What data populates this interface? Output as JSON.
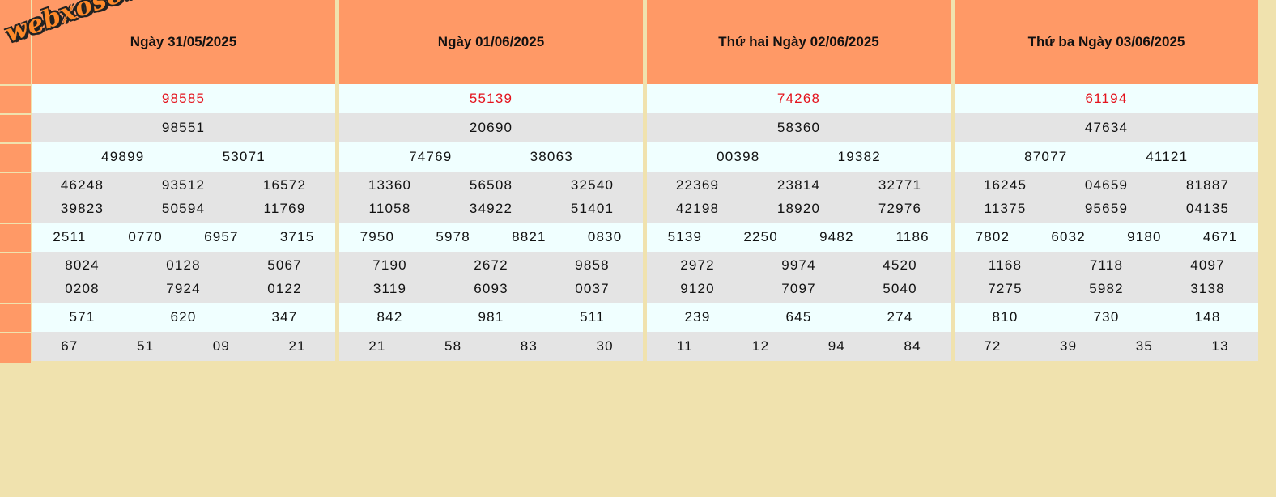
{
  "logo": "webxoso.net",
  "days": [
    {
      "title": "Ngày 31/05/2025",
      "g_db": [
        "98585"
      ],
      "g1": [
        "98551"
      ],
      "g2": [
        "49899",
        "53071"
      ],
      "g3a": [
        "46248",
        "93512",
        "16572"
      ],
      "g3b": [
        "39823",
        "50594",
        "11769"
      ],
      "g4": [
        "2511",
        "0770",
        "6957",
        "3715"
      ],
      "g5a": [
        "8024",
        "0128",
        "5067"
      ],
      "g5b": [
        "0208",
        "7924",
        "0122"
      ],
      "g6": [
        "571",
        "620",
        "347"
      ],
      "g7": [
        "67",
        "51",
        "09",
        "21"
      ]
    },
    {
      "title": "Ngày 01/06/2025",
      "g_db": [
        "55139"
      ],
      "g1": [
        "20690"
      ],
      "g2": [
        "74769",
        "38063"
      ],
      "g3a": [
        "13360",
        "56508",
        "32540"
      ],
      "g3b": [
        "11058",
        "34922",
        "51401"
      ],
      "g4": [
        "7950",
        "5978",
        "8821",
        "0830"
      ],
      "g5a": [
        "7190",
        "2672",
        "9858"
      ],
      "g5b": [
        "3119",
        "6093",
        "0037"
      ],
      "g6": [
        "842",
        "981",
        "511"
      ],
      "g7": [
        "21",
        "58",
        "83",
        "30"
      ]
    },
    {
      "title": "Thứ hai Ngày 02/06/2025",
      "g_db": [
        "74268"
      ],
      "g1": [
        "58360"
      ],
      "g2": [
        "00398",
        "19382"
      ],
      "g3a": [
        "22369",
        "23814",
        "32771"
      ],
      "g3b": [
        "42198",
        "18920",
        "72976"
      ],
      "g4": [
        "5139",
        "2250",
        "9482",
        "1186"
      ],
      "g5a": [
        "2972",
        "9974",
        "4520"
      ],
      "g5b": [
        "9120",
        "7097",
        "5040"
      ],
      "g6": [
        "239",
        "645",
        "274"
      ],
      "g7": [
        "11",
        "12",
        "94",
        "84"
      ]
    },
    {
      "title": "Thứ ba Ngày 03/06/2025",
      "g_db": [
        "61194"
      ],
      "g1": [
        "47634"
      ],
      "g2": [
        "87077",
        "41121"
      ],
      "g3a": [
        "16245",
        "04659",
        "81887"
      ],
      "g3b": [
        "11375",
        "95659",
        "04135"
      ],
      "g4": [
        "7802",
        "6032",
        "9180",
        "4671"
      ],
      "g5a": [
        "1168",
        "7118",
        "4097"
      ],
      "g5b": [
        "7275",
        "5982",
        "3138"
      ],
      "g6": [
        "810",
        "730",
        "148"
      ],
      "g7": [
        "72",
        "39",
        "35",
        "13"
      ]
    }
  ]
}
